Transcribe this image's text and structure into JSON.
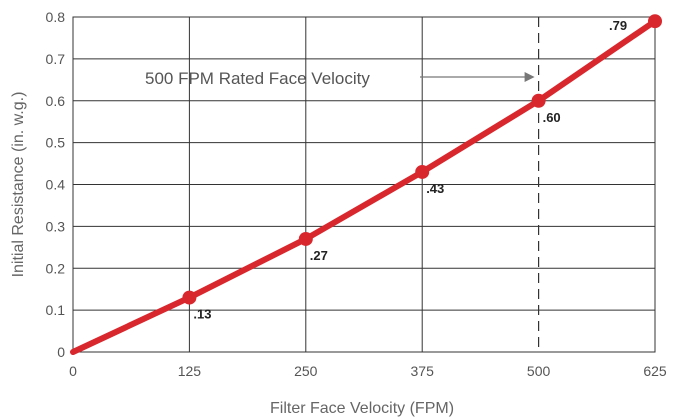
{
  "chart_data": {
    "type": "line",
    "title": "",
    "xlabel": "Filter Face Velocity (FPM)",
    "ylabel": "Initial Resistance (in. w.g.)",
    "xlim": [
      0,
      625
    ],
    "ylim": [
      0,
      0.8
    ],
    "x_ticks": [
      "0",
      "125",
      "250",
      "375",
      "500",
      "625"
    ],
    "y_ticks": [
      "0",
      "0.1",
      "0.2",
      "0.3",
      "0.4",
      "0.5",
      "0.6",
      "0.7",
      "0.8"
    ],
    "grid": true,
    "series": [
      {
        "x": [
          0,
          125,
          250,
          375,
          500,
          625
        ],
        "y": [
          0,
          0.13,
          0.27,
          0.43,
          0.6,
          0.79
        ],
        "labels": [
          "",
          ".13",
          ".27",
          ".43",
          ".60",
          ".79"
        ],
        "markers": [
          false,
          true,
          true,
          true,
          true,
          true
        ],
        "color": "#d9272e"
      }
    ],
    "reference_line": {
      "x": 500,
      "style": "dashed"
    },
    "annotation": {
      "text": "500 FPM Rated Face Velocity",
      "arrow_to_x": 500
    }
  }
}
